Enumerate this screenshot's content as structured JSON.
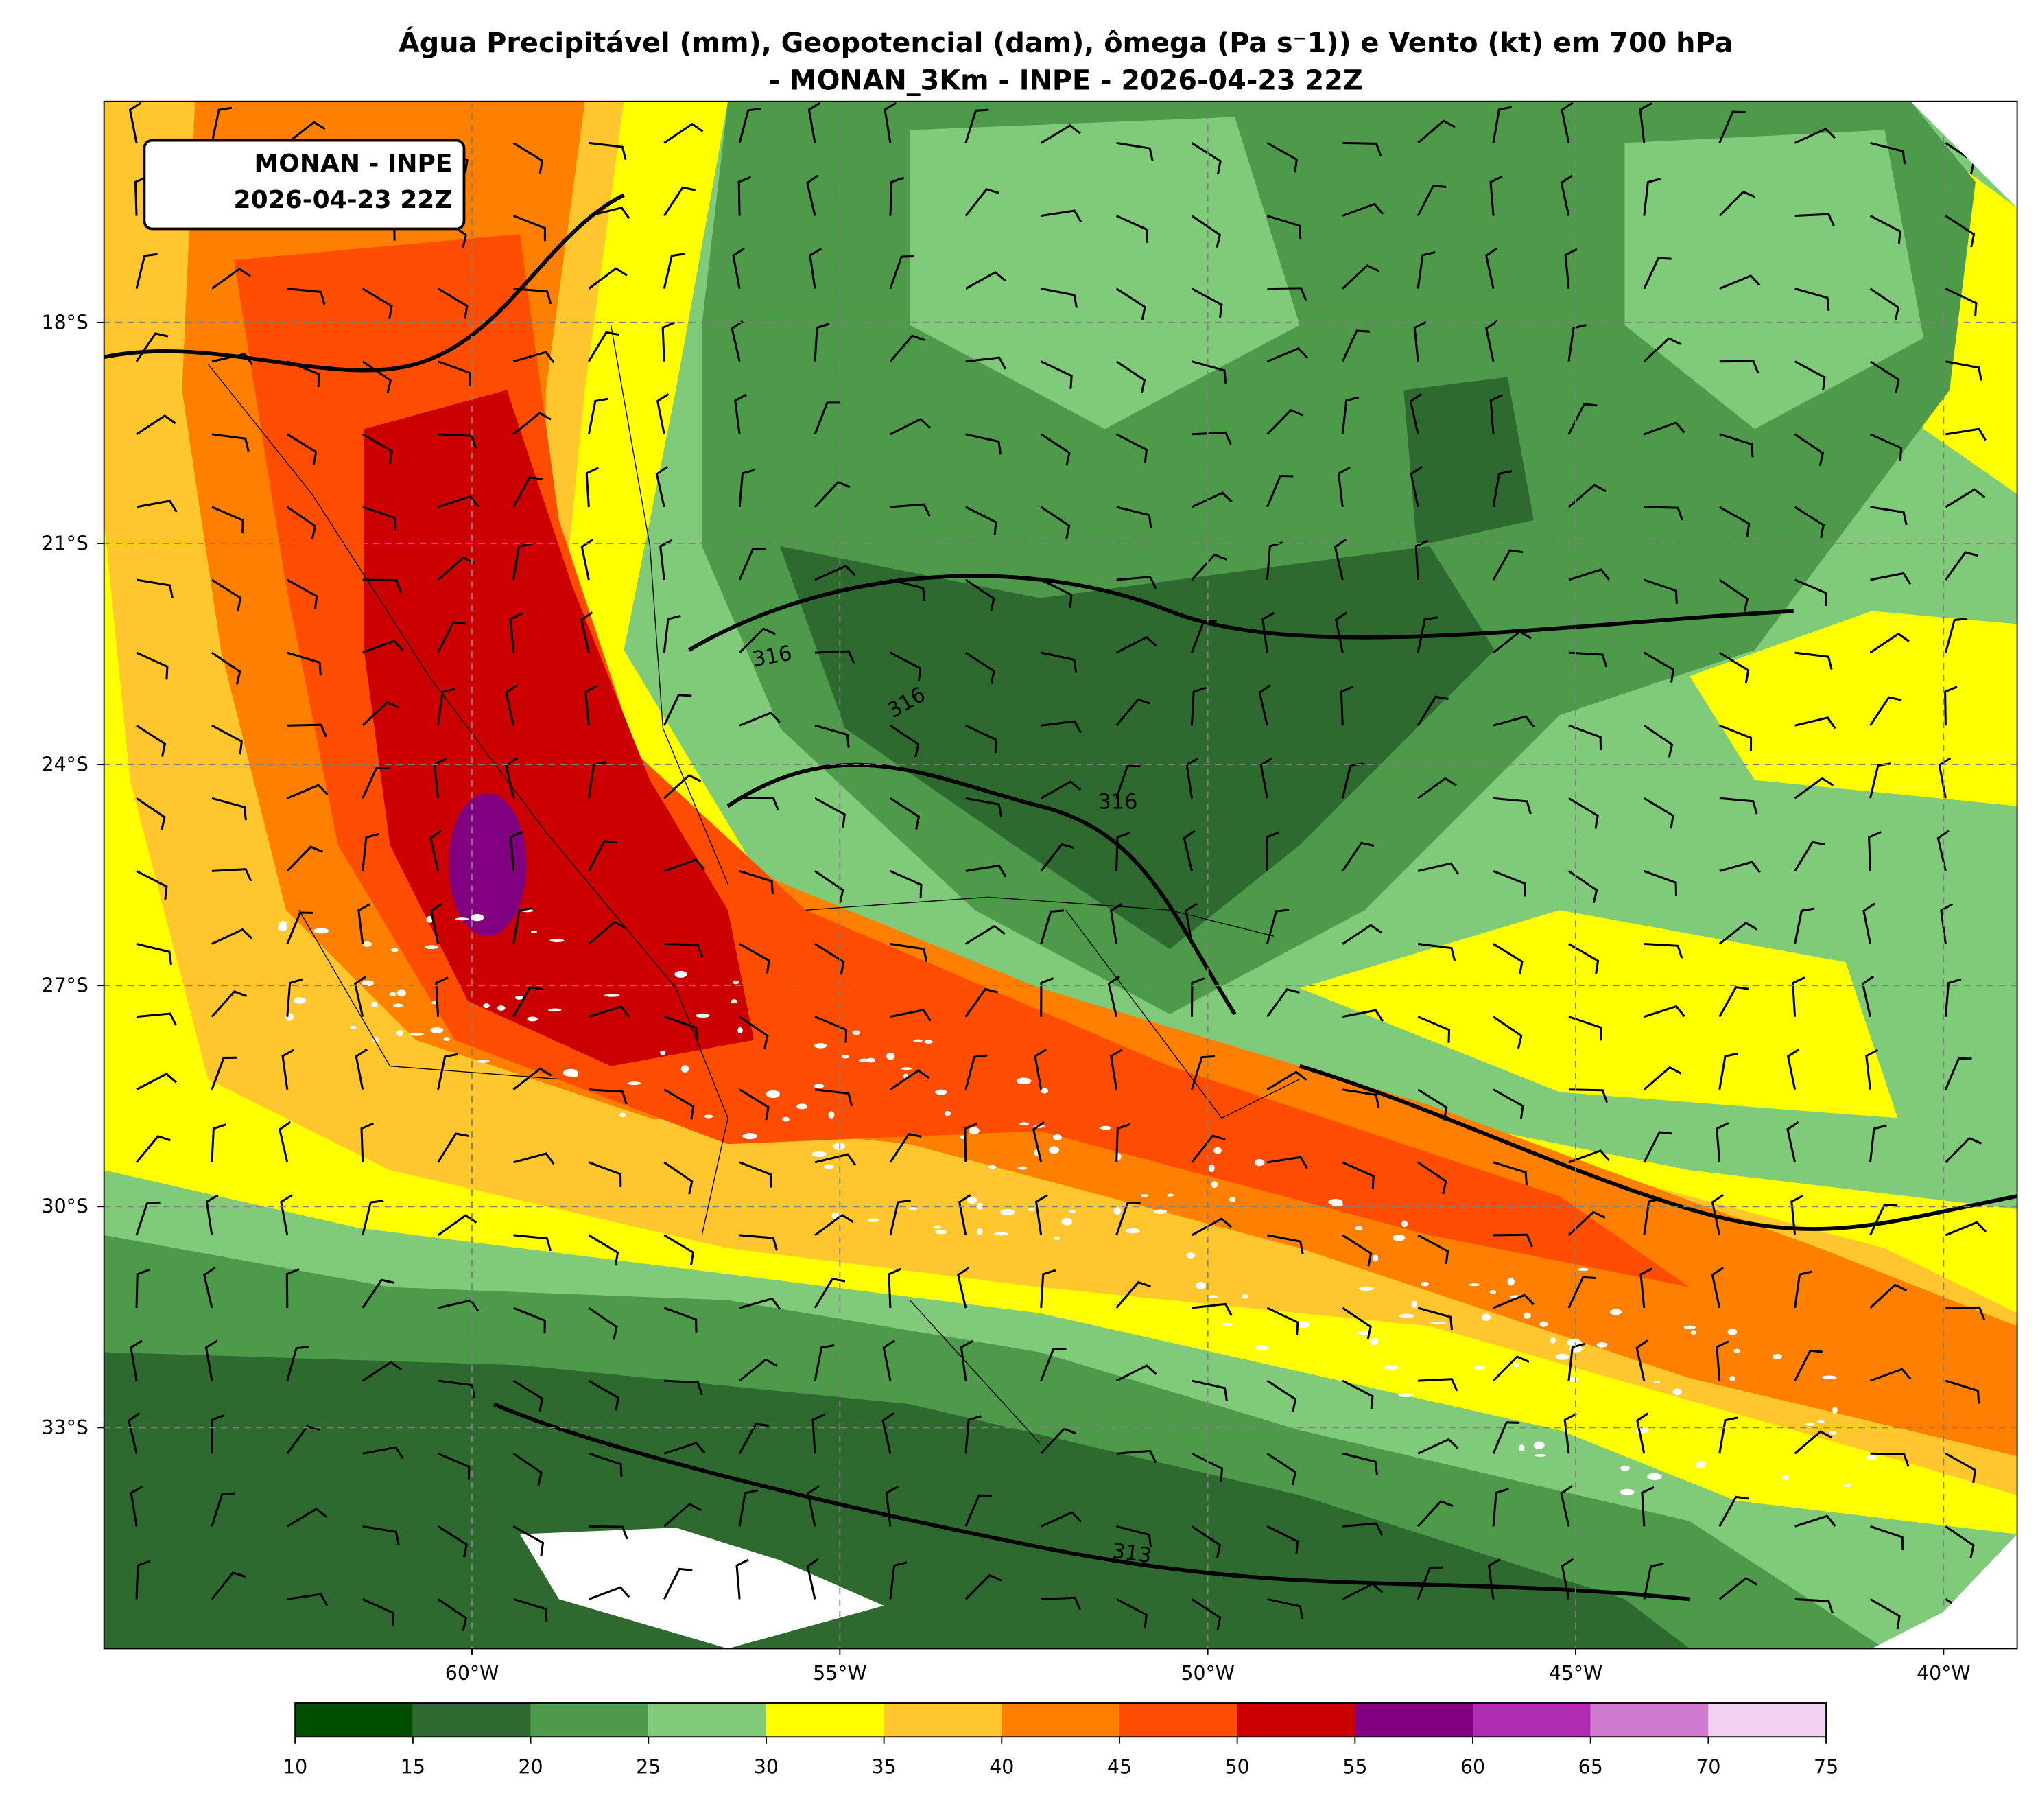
{
  "title": [
    "Água Precipitável (mm), Geopotencial (dam), ômega (Pa s⁻1)) e Vento (kt) em 700 hPa",
    "- MONAN_3Km - INPE - 2026-04-23 22Z"
  ],
  "annotation": [
    "MONAN - INPE",
    "2026-04-23 22Z"
  ],
  "map": {
    "xlim": [
      -65,
      -39
    ],
    "ylim": [
      -36,
      -15
    ],
    "xticks": [
      {
        "value": -60,
        "label": "60°W"
      },
      {
        "value": -55,
        "label": "55°W"
      },
      {
        "value": -50,
        "label": "50°W"
      },
      {
        "value": -45,
        "label": "45°W"
      },
      {
        "value": -40,
        "label": "40°W"
      }
    ],
    "yticks": [
      {
        "value": -18,
        "label": "18°S"
      },
      {
        "value": -21,
        "label": "21°S"
      },
      {
        "value": -24,
        "label": "24°S"
      },
      {
        "value": -27,
        "label": "27°S"
      },
      {
        "value": -30,
        "label": "30°S"
      },
      {
        "value": -33,
        "label": "33°S"
      }
    ],
    "contour_labels": [
      "316",
      "316",
      "316",
      "313"
    ]
  },
  "colorbar": {
    "ticks": [
      10,
      15,
      20,
      25,
      30,
      35,
      40,
      45,
      50,
      55,
      60,
      65,
      70,
      75
    ],
    "colors": [
      "#004f00",
      "#2e6a30",
      "#4c9a4a",
      "#7fcb7a",
      "#ffff00",
      "#ffc62e",
      "#ff8000",
      "#ff4d00",
      "#cc0000",
      "#800080",
      "#b02cb0",
      "#d07ad0",
      "#f0d2f0"
    ]
  }
}
